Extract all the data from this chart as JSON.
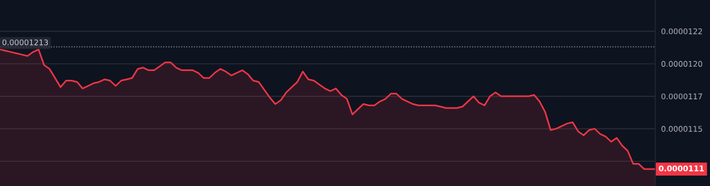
{
  "chart_data": {
    "type": "area",
    "color": "#f23645",
    "grid": "y",
    "categories": [
      null,
      null,
      null,
      null,
      null,
      null,
      null,
      null,
      null,
      null,
      null,
      null,
      null,
      null,
      null,
      null,
      null,
      null,
      null,
      null,
      null,
      null,
      null,
      null,
      null,
      null,
      null,
      null,
      null,
      null,
      null,
      null,
      null,
      null,
      null,
      null,
      null,
      null,
      null,
      null,
      null,
      null,
      null,
      null,
      null,
      null,
      null,
      null,
      null,
      null,
      null,
      null,
      null,
      null,
      null,
      null,
      null,
      null,
      null,
      null,
      null,
      null,
      null,
      null,
      null,
      null,
      null,
      null,
      null,
      null,
      null,
      null,
      null,
      null,
      null,
      null,
      null,
      null,
      null,
      null,
      null,
      null,
      null,
      null,
      null,
      null,
      null,
      null,
      null,
      null,
      null,
      null,
      null,
      null,
      null,
      null,
      null,
      null,
      null,
      null,
      null,
      null,
      null,
      null,
      null,
      null,
      null,
      null,
      null,
      null,
      null,
      null,
      null,
      null,
      null,
      null,
      null,
      null,
      null,
      null
    ],
    "values": [
      1.211e-05,
      1.21e-05,
      1.209e-05,
      1.208e-05,
      1.207e-05,
      1.206e-05,
      1.209e-05,
      1.211e-05,
      1.199e-05,
      1.196e-05,
      1.189e-05,
      1.182e-05,
      1.187e-05,
      1.187e-05,
      1.186e-05,
      1.181e-05,
      1.183e-05,
      1.185e-05,
      1.186e-05,
      1.188e-05,
      1.187e-05,
      1.183e-05,
      1.187e-05,
      1.188e-05,
      1.189e-05,
      1.196e-05,
      1.197e-05,
      1.195e-05,
      1.195e-05,
      1.198e-05,
      1.201e-05,
      1.201e-05,
      1.197e-05,
      1.195e-05,
      1.195e-05,
      1.195e-05,
      1.193e-05,
      1.189e-05,
      1.189e-05,
      1.193e-05,
      1.196e-05,
      1.194e-05,
      1.191e-05,
      1.193e-05,
      1.195e-05,
      1.192e-05,
      1.187e-05,
      1.186e-05,
      1.18e-05,
      1.174e-05,
      1.169e-05,
      1.172e-05,
      1.178e-05,
      1.182e-05,
      1.186e-05,
      1.194e-05,
      1.188e-05,
      1.187e-05,
      1.184e-05,
      1.181e-05,
      1.179e-05,
      1.181e-05,
      1.176e-05,
      1.173e-05,
      1.161e-05,
      1.165e-05,
      1.169e-05,
      1.168e-05,
      1.168e-05,
      1.171e-05,
      1.173e-05,
      1.177e-05,
      1.177e-05,
      1.173e-05,
      1.171e-05,
      1.169e-05,
      1.168e-05,
      1.168e-05,
      1.168e-05,
      1.168e-05,
      1.167e-05,
      1.166e-05,
      1.166e-05,
      1.166e-05,
      1.167e-05,
      1.171e-05,
      1.175e-05,
      1.17e-05,
      1.168e-05,
      1.175e-05,
      1.178e-05,
      1.175e-05,
      1.175e-05,
      1.175e-05,
      1.175e-05,
      1.175e-05,
      1.175e-05,
      1.176e-05,
      1.171e-05,
      1.163e-05,
      1.149e-05,
      1.15e-05,
      1.152e-05,
      1.154e-05,
      1.155e-05,
      1.148e-05,
      1.145e-05,
      1.149e-05,
      1.15e-05,
      1.146e-05,
      1.144e-05,
      1.14e-05,
      1.143e-05,
      1.137e-05,
      1.133e-05,
      1.123e-05,
      1.123e-05,
      1.119e-05,
      1.119e-05,
      1.119e-05
    ],
    "ylim": [
      1.106e-05,
      1.249e-05
    ],
    "yticks": [
      {
        "value": 1.225e-05,
        "label": "0.0000122"
      },
      {
        "value": 1.2e-05,
        "label": "0.0000120"
      },
      {
        "value": 1.175e-05,
        "label": "0.0000117"
      },
      {
        "value": 1.15e-05,
        "label": "0.0000115"
      },
      {
        "value": 1.125e-05,
        "label": null
      }
    ],
    "ref_lines": [
      {
        "axis": "y",
        "value": 1.213e-05,
        "label": "0.00001213",
        "line_style": "dotted",
        "color": "#8a8f9c"
      }
    ],
    "annotations": [
      "0.0000111"
    ]
  }
}
